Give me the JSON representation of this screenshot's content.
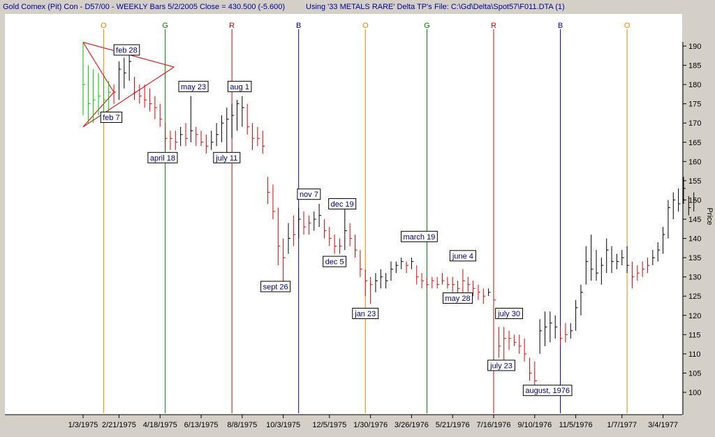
{
  "header": {
    "symbol": "Gold Comex (Pit) Con - D57/00  - WEEKLY Bars  5/2/2005 Close = 430.500 (-5.600)",
    "study": "Using '33 METALS RARE' Delta TP's",
    "file": "File: C:\\Gd\\Delta\\Spot57\\F011.DTA (1)"
  },
  "chart_data": {
    "type": "bar",
    "title": "",
    "ylabel": "Price",
    "ylim": [
      96,
      194
    ],
    "y_ticks": [
      100,
      105,
      110,
      115,
      120,
      125,
      130,
      135,
      140,
      145,
      150,
      155,
      160,
      165,
      170,
      175,
      180,
      185,
      190
    ],
    "x_ticks": [
      "1/3/1975",
      "2/21/1975",
      "4/18/1975",
      "6/13/1975",
      "8/8/1975",
      "10/3/1975",
      "12/5/1975",
      "1/30/1976",
      "3/26/1976",
      "5/21/1976",
      "7/16/1976",
      "9/10/1976",
      "11/5/1976",
      "1/7/1977",
      "3/4/1977"
    ],
    "x_tick_week": [
      0,
      7,
      15,
      23,
      31,
      39,
      48,
      56,
      64,
      72,
      80,
      88,
      96,
      105,
      113
    ],
    "colors": {
      "up": "#000000",
      "down": "#e00000",
      "early": "#00c000",
      "O": "#ff8000",
      "G": "#008000",
      "R": "#e00000",
      "B": "#0000c0",
      "label_text": "#00007a"
    },
    "turning_points": [
      {
        "letter": "O",
        "week": 4
      },
      {
        "letter": "G",
        "week": 16
      },
      {
        "letter": "R",
        "week": 29
      },
      {
        "letter": "B",
        "week": 42
      },
      {
        "letter": "O",
        "week": 55
      },
      {
        "letter": "G",
        "week": 67
      },
      {
        "letter": "R",
        "week": 80
      },
      {
        "letter": "B",
        "week": 93
      },
      {
        "letter": "O",
        "week": 106
      }
    ],
    "annotations": [
      {
        "text": "feb 28",
        "week": 8.5,
        "price": 189.0
      },
      {
        "text": "feb 7",
        "week": 5.5,
        "price": 171.5
      },
      {
        "text": "may 23",
        "week": 21.5,
        "price": 179.5
      },
      {
        "text": "aug 1",
        "week": 30.5,
        "price": 179.5
      },
      {
        "text": "april 18",
        "week": 15.5,
        "price": 161.0
      },
      {
        "text": "july 11",
        "week": 28.0,
        "price": 161.0
      },
      {
        "text": "nov 7",
        "week": 44.0,
        "price": 151.5
      },
      {
        "text": "dec 19",
        "week": 50.5,
        "price": 149.0
      },
      {
        "text": "dec 5",
        "week": 49.0,
        "price": 134.0
      },
      {
        "text": "sept 26",
        "week": 37.5,
        "price": 127.5
      },
      {
        "text": "march 19",
        "week": 65.5,
        "price": 140.5
      },
      {
        "text": "jan 23",
        "week": 55.0,
        "price": 120.5
      },
      {
        "text": "june 4",
        "week": 74.0,
        "price": 135.5
      },
      {
        "text": "may 28",
        "week": 73.0,
        "price": 124.5
      },
      {
        "text": "july 30",
        "week": 83.0,
        "price": 120.5
      },
      {
        "text": "july 23",
        "week": 81.5,
        "price": 107.0
      },
      {
        "text": "august, 1976",
        "week": 90.5,
        "price": 100.5
      }
    ],
    "series": [
      {
        "name": "OHLC",
        "bars": [
          {
            "w": 0,
            "h": 191,
            "l": 172,
            "c": 180,
            "k": "g"
          },
          {
            "w": 1,
            "h": 185,
            "l": 170,
            "c": 175,
            "k": "g"
          },
          {
            "w": 2,
            "h": 184,
            "l": 170,
            "c": 176,
            "k": "g"
          },
          {
            "w": 3,
            "h": 183,
            "l": 172,
            "c": 177,
            "k": "g"
          },
          {
            "w": 4,
            "h": 182,
            "l": 171,
            "c": 176,
            "k": "g"
          },
          {
            "w": 5,
            "h": 181,
            "l": 173,
            "c": 178,
            "k": "g"
          },
          {
            "w": 6,
            "h": 180,
            "l": 175,
            "c": 178,
            "k": "d"
          },
          {
            "w": 7,
            "h": 186,
            "l": 176,
            "c": 184,
            "k": "u"
          },
          {
            "w": 8,
            "h": 187,
            "l": 179,
            "c": 183,
            "k": "u"
          },
          {
            "w": 9,
            "h": 188,
            "l": 181,
            "c": 186,
            "k": "u"
          },
          {
            "w": 10,
            "h": 182,
            "l": 176,
            "c": 178,
            "k": "d"
          },
          {
            "w": 11,
            "h": 180,
            "l": 175,
            "c": 177,
            "k": "d"
          },
          {
            "w": 12,
            "h": 180,
            "l": 174,
            "c": 176,
            "k": "d"
          },
          {
            "w": 13,
            "h": 179,
            "l": 173,
            "c": 175,
            "k": "d"
          },
          {
            "w": 14,
            "h": 177,
            "l": 171,
            "c": 174,
            "k": "d"
          },
          {
            "w": 15,
            "h": 175,
            "l": 169,
            "c": 171,
            "k": "d"
          },
          {
            "w": 16,
            "h": 170,
            "l": 163,
            "c": 166,
            "k": "d"
          },
          {
            "w": 17,
            "h": 168,
            "l": 163,
            "c": 166,
            "k": "d"
          },
          {
            "w": 18,
            "h": 168,
            "l": 163,
            "c": 165,
            "k": "d"
          },
          {
            "w": 19,
            "h": 169,
            "l": 164,
            "c": 167,
            "k": "u"
          },
          {
            "w": 20,
            "h": 170,
            "l": 164,
            "c": 166,
            "k": "d"
          },
          {
            "w": 21,
            "h": 177,
            "l": 165,
            "c": 168,
            "k": "u"
          },
          {
            "w": 22,
            "h": 169,
            "l": 164,
            "c": 167,
            "k": "d"
          },
          {
            "w": 23,
            "h": 168,
            "l": 164,
            "c": 165,
            "k": "d"
          },
          {
            "w": 24,
            "h": 167,
            "l": 162,
            "c": 164,
            "k": "d"
          },
          {
            "w": 25,
            "h": 168,
            "l": 163,
            "c": 165,
            "k": "u"
          },
          {
            "w": 26,
            "h": 170,
            "l": 164,
            "c": 167,
            "k": "u"
          },
          {
            "w": 27,
            "h": 172,
            "l": 165,
            "c": 170,
            "k": "u"
          },
          {
            "w": 28,
            "h": 174,
            "l": 162,
            "c": 171,
            "k": "u"
          },
          {
            "w": 29,
            "h": 175,
            "l": 166,
            "c": 172,
            "k": "u"
          },
          {
            "w": 30,
            "h": 176,
            "l": 168,
            "c": 175,
            "k": "u"
          },
          {
            "w": 31,
            "h": 177,
            "l": 169,
            "c": 174,
            "k": "u"
          },
          {
            "w": 32,
            "h": 175,
            "l": 167,
            "c": 169,
            "k": "d"
          },
          {
            "w": 33,
            "h": 170,
            "l": 163,
            "c": 166,
            "k": "d"
          },
          {
            "w": 34,
            "h": 169,
            "l": 164,
            "c": 166,
            "k": "d"
          },
          {
            "w": 35,
            "h": 168,
            "l": 162,
            "c": 164,
            "k": "d"
          },
          {
            "w": 36,
            "h": 156,
            "l": 149,
            "c": 152,
            "k": "d"
          },
          {
            "w": 37,
            "h": 154,
            "l": 145,
            "c": 147,
            "k": "d"
          },
          {
            "w": 38,
            "h": 148,
            "l": 133,
            "c": 138,
            "k": "d"
          },
          {
            "w": 39,
            "h": 140,
            "l": 128,
            "c": 135,
            "k": "d"
          },
          {
            "w": 40,
            "h": 144,
            "l": 136,
            "c": 140,
            "k": "u"
          },
          {
            "w": 41,
            "h": 146,
            "l": 138,
            "c": 141,
            "k": "d"
          },
          {
            "w": 42,
            "h": 148,
            "l": 140,
            "c": 145,
            "k": "u"
          },
          {
            "w": 43,
            "h": 147,
            "l": 141,
            "c": 143,
            "k": "d"
          },
          {
            "w": 44,
            "h": 146,
            "l": 141,
            "c": 144,
            "k": "d"
          },
          {
            "w": 45,
            "h": 147,
            "l": 142,
            "c": 145,
            "k": "u"
          },
          {
            "w": 46,
            "h": 149,
            "l": 143,
            "c": 146,
            "k": "u"
          },
          {
            "w": 47,
            "h": 145,
            "l": 140,
            "c": 142,
            "k": "d"
          },
          {
            "w": 48,
            "h": 143,
            "l": 138,
            "c": 140,
            "k": "d"
          },
          {
            "w": 49,
            "h": 141,
            "l": 136,
            "c": 138,
            "k": "d"
          },
          {
            "w": 50,
            "h": 140,
            "l": 136,
            "c": 138,
            "k": "d"
          },
          {
            "w": 51,
            "h": 148,
            "l": 137,
            "c": 142,
            "k": "u"
          },
          {
            "w": 52,
            "h": 144,
            "l": 138,
            "c": 140,
            "k": "d"
          },
          {
            "w": 53,
            "h": 141,
            "l": 135,
            "c": 137,
            "k": "d"
          },
          {
            "w": 54,
            "h": 137,
            "l": 130,
            "c": 132,
            "k": "d"
          },
          {
            "w": 55,
            "h": 132,
            "l": 125,
            "c": 129,
            "k": "d"
          },
          {
            "w": 56,
            "h": 130,
            "l": 123,
            "c": 128,
            "k": "d"
          },
          {
            "w": 57,
            "h": 131,
            "l": 126,
            "c": 129,
            "k": "u"
          },
          {
            "w": 58,
            "h": 132,
            "l": 127,
            "c": 130,
            "k": "u"
          },
          {
            "w": 59,
            "h": 131,
            "l": 127,
            "c": 129,
            "k": "u"
          },
          {
            "w": 60,
            "h": 134,
            "l": 129,
            "c": 132,
            "k": "u"
          },
          {
            "w": 61,
            "h": 134,
            "l": 131,
            "c": 133,
            "k": "u"
          },
          {
            "w": 62,
            "h": 135,
            "l": 132,
            "c": 134,
            "k": "u"
          },
          {
            "w": 63,
            "h": 134,
            "l": 131,
            "c": 133,
            "k": "d"
          },
          {
            "w": 64,
            "h": 135,
            "l": 132,
            "c": 134,
            "k": "u"
          },
          {
            "w": 65,
            "h": 133,
            "l": 128,
            "c": 130,
            "k": "d"
          },
          {
            "w": 66,
            "h": 131,
            "l": 127,
            "c": 129,
            "k": "d"
          },
          {
            "w": 67,
            "h": 130,
            "l": 127,
            "c": 128,
            "k": "d"
          },
          {
            "w": 68,
            "h": 130,
            "l": 127,
            "c": 129,
            "k": "d"
          },
          {
            "w": 69,
            "h": 130,
            "l": 127,
            "c": 128,
            "k": "d"
          },
          {
            "w": 70,
            "h": 131,
            "l": 128,
            "c": 129,
            "k": "d"
          },
          {
            "w": 71,
            "h": 130,
            "l": 127,
            "c": 128,
            "k": "d"
          },
          {
            "w": 72,
            "h": 130,
            "l": 126,
            "c": 128,
            "k": "d"
          },
          {
            "w": 73,
            "h": 129,
            "l": 125,
            "c": 127,
            "k": "d"
          },
          {
            "w": 74,
            "h": 132,
            "l": 126,
            "c": 129,
            "k": "d"
          },
          {
            "w": 75,
            "h": 130,
            "l": 126,
            "c": 128,
            "k": "d"
          },
          {
            "w": 76,
            "h": 129,
            "l": 125,
            "c": 127,
            "k": "d"
          },
          {
            "w": 77,
            "h": 128,
            "l": 124,
            "c": 126,
            "k": "d"
          },
          {
            "w": 78,
            "h": 127,
            "l": 123,
            "c": 125,
            "k": "d"
          },
          {
            "w": 79,
            "h": 127,
            "l": 125,
            "c": 126,
            "k": "u"
          },
          {
            "w": 80,
            "h": 126,
            "l": 123,
            "c": 124,
            "k": "d"
          },
          {
            "w": 81,
            "h": 117,
            "l": 109,
            "c": 112,
            "k": "d"
          },
          {
            "w": 82,
            "h": 117,
            "l": 107,
            "c": 114,
            "k": "d"
          },
          {
            "w": 83,
            "h": 116,
            "l": 111,
            "c": 114,
            "k": "d"
          },
          {
            "w": 84,
            "h": 115,
            "l": 112,
            "c": 113,
            "k": "d"
          },
          {
            "w": 85,
            "h": 115,
            "l": 110,
            "c": 112,
            "k": "d"
          },
          {
            "w": 86,
            "h": 114,
            "l": 108,
            "c": 110,
            "k": "d"
          },
          {
            "w": 87,
            "h": 109,
            "l": 103,
            "c": 105,
            "k": "d"
          },
          {
            "w": 88,
            "h": 108,
            "l": 101,
            "c": 103,
            "k": "d"
          },
          {
            "w": 89,
            "h": 119,
            "l": 110,
            "c": 116,
            "k": "u"
          },
          {
            "w": 90,
            "h": 121,
            "l": 112,
            "c": 117,
            "k": "u"
          },
          {
            "w": 91,
            "h": 121,
            "l": 113,
            "c": 118,
            "k": "u"
          },
          {
            "w": 92,
            "h": 120,
            "l": 114,
            "c": 117,
            "k": "u"
          },
          {
            "w": 93,
            "h": 117,
            "l": 112,
            "c": 114,
            "k": "d"
          },
          {
            "w": 94,
            "h": 118,
            "l": 113,
            "c": 115,
            "k": "d"
          },
          {
            "w": 95,
            "h": 118,
            "l": 114,
            "c": 116,
            "k": "u"
          },
          {
            "w": 96,
            "h": 124,
            "l": 116,
            "c": 122,
            "k": "u"
          },
          {
            "w": 97,
            "h": 128,
            "l": 120,
            "c": 126,
            "k": "u"
          },
          {
            "w": 98,
            "h": 138,
            "l": 128,
            "c": 134,
            "k": "u"
          },
          {
            "w": 99,
            "h": 141,
            "l": 129,
            "c": 132,
            "k": "u"
          },
          {
            "w": 100,
            "h": 137,
            "l": 129,
            "c": 131,
            "k": "u"
          },
          {
            "w": 101,
            "h": 135,
            "l": 128,
            "c": 133,
            "k": "u"
          },
          {
            "w": 102,
            "h": 140,
            "l": 131,
            "c": 137,
            "k": "u"
          },
          {
            "w": 103,
            "h": 138,
            "l": 131,
            "c": 134,
            "k": "u"
          },
          {
            "w": 104,
            "h": 136,
            "l": 132,
            "c": 134,
            "k": "u"
          },
          {
            "w": 105,
            "h": 137,
            "l": 133,
            "c": 135,
            "k": "u"
          },
          {
            "w": 106,
            "h": 138,
            "l": 131,
            "c": 133,
            "k": "u"
          },
          {
            "w": 107,
            "h": 134,
            "l": 127,
            "c": 130,
            "k": "d"
          },
          {
            "w": 108,
            "h": 133,
            "l": 129,
            "c": 131,
            "k": "d"
          },
          {
            "w": 109,
            "h": 134,
            "l": 130,
            "c": 132,
            "k": "d"
          },
          {
            "w": 110,
            "h": 135,
            "l": 131,
            "c": 133,
            "k": "d"
          },
          {
            "w": 111,
            "h": 137,
            "l": 133,
            "c": 135,
            "k": "u"
          },
          {
            "w": 112,
            "h": 139,
            "l": 134,
            "c": 137,
            "k": "u"
          },
          {
            "w": 113,
            "h": 143,
            "l": 136,
            "c": 141,
            "k": "u"
          },
          {
            "w": 114,
            "h": 150,
            "l": 140,
            "c": 148,
            "k": "u"
          },
          {
            "w": 115,
            "h": 152,
            "l": 145,
            "c": 150,
            "k": "u"
          },
          {
            "w": 116,
            "h": 153,
            "l": 147,
            "c": 149,
            "k": "u"
          },
          {
            "w": 117,
            "h": 156,
            "l": 149,
            "c": 153,
            "k": "u"
          },
          {
            "w": 118,
            "h": 151,
            "l": 146,
            "c": 148,
            "k": "u"
          },
          {
            "w": 119,
            "h": 152,
            "l": 147,
            "c": 150,
            "k": "u"
          }
        ]
      }
    ],
    "triangle": [
      {
        "week": 0,
        "price": 191
      },
      {
        "week": 15,
        "price": 186
      },
      {
        "week": 0,
        "price": 169
      },
      {
        "week": 6,
        "price": 178
      }
    ]
  }
}
